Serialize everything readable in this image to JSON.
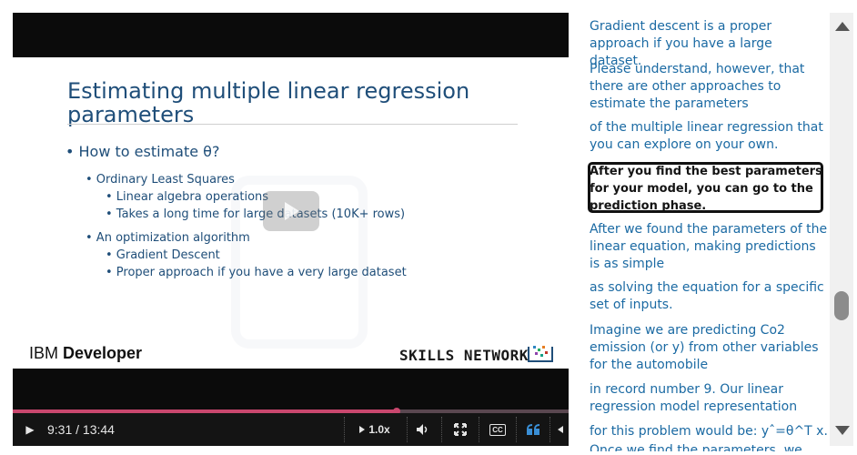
{
  "player": {
    "slide": {
      "title_line1": "Estimating multiple linear regression",
      "title_line2": "parameters",
      "question": "• How to estimate θ?",
      "items": [
        "• Ordinary Least Squares",
        "• Linear algebra operations",
        "• Takes a long time for large datasets (10K+ rows)",
        "• An optimization algorithm",
        "• Gradient Descent",
        "• Proper approach if you have a very large dataset"
      ],
      "brand_left_regular": "IBM ",
      "brand_left_bold": "Developer",
      "brand_right": "SKILLS NETWORK"
    },
    "progress": 0.69,
    "controls": {
      "play_icon": "▶",
      "time": "9:31 / 13:44",
      "speed": "1.0x",
      "cc_label": "CC"
    }
  },
  "transcript": {
    "lines": [
      "Gradient descent is a proper approach if you have a large dataset.",
      "Please understand, however, that there are other approaches to estimate the parameters",
      "of the multiple linear regression that you can explore on your own.",
      "After you find the best parameters for your model, you can go to the prediction phase.",
      "After we found the parameters of the linear equation, making predictions is as simple",
      "as solving the equation for a specific set of inputs.",
      "Imagine we are predicting Co2 emission (or y) from other variables for the automobile",
      "in record number 9. Our linear regression model representation",
      "for this problem would be: yˆ=θ^T x.",
      "Once we find the parameters, we can"
    ],
    "active_index": 3
  },
  "colors": {
    "accent": "#c9476e",
    "transcript_text": "#1b6aa3",
    "slide_text": "#1f4e79"
  }
}
